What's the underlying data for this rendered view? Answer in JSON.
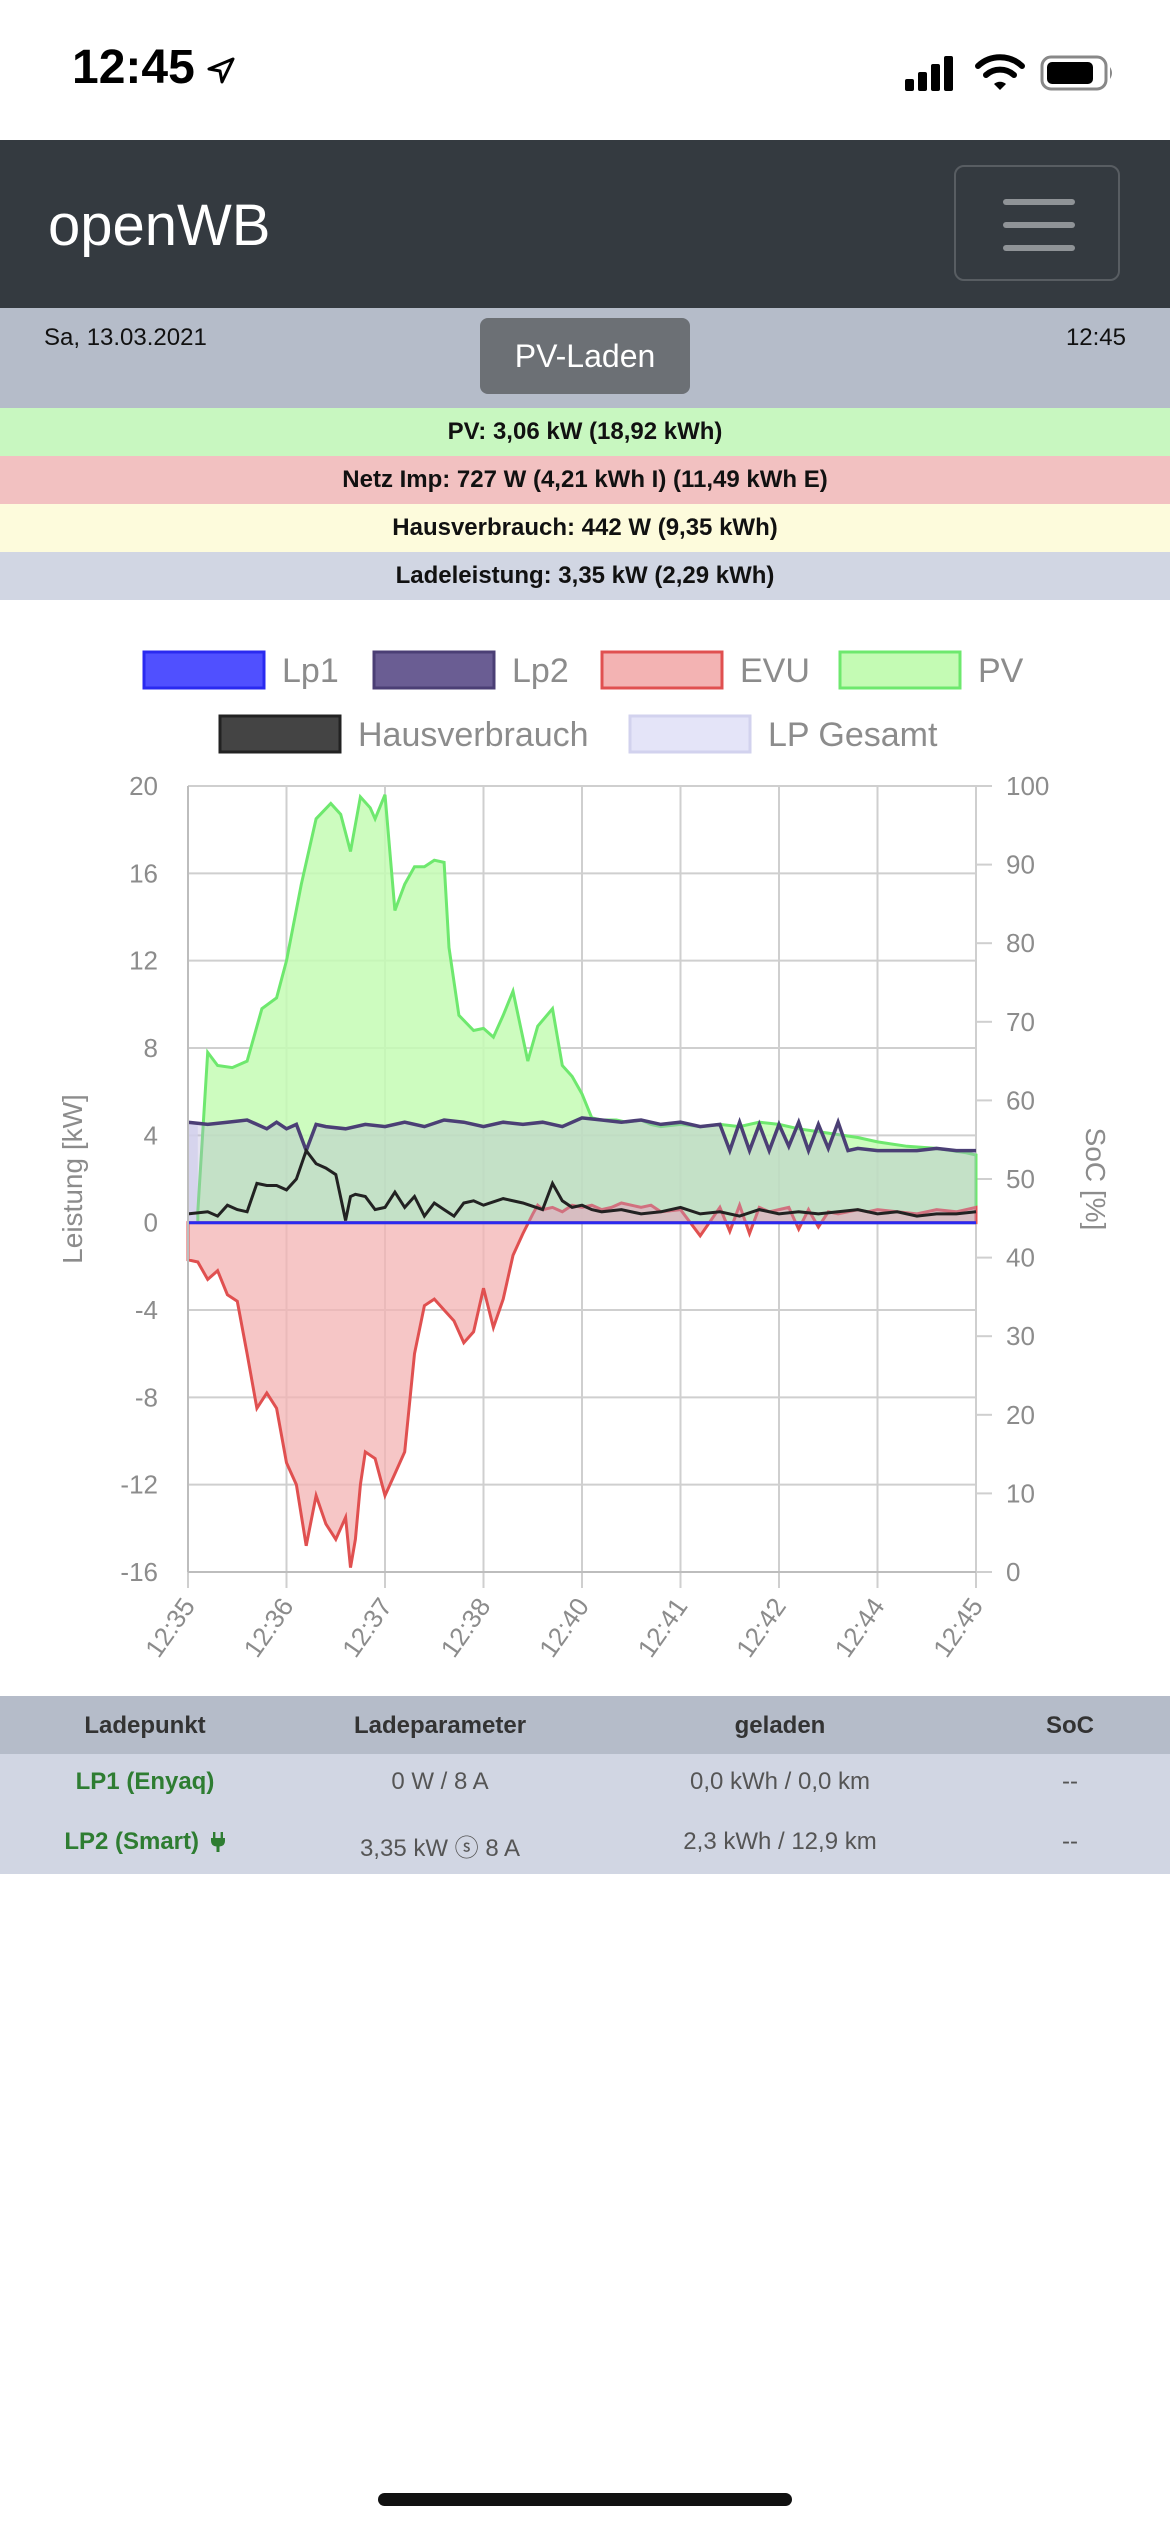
{
  "status_bar": {
    "time": "12:45"
  },
  "navbar": {
    "brand": "openWB"
  },
  "date_bar": {
    "date": "Sa, 13.03.2021",
    "time": "12:45",
    "mode_button": "PV-Laden"
  },
  "summary": {
    "pv": "PV: 3,06 kW (18,92 kWh)",
    "netz": "Netz Imp: 727 W (4,21 kWh I) (11,49 kWh E)",
    "hausverbrauch": "Hausverbrauch: 442 W (9,35 kWh)",
    "ladeleistung": "Ladeleistung: 3,35 kW (2,29 kWh)"
  },
  "chart_data": {
    "type": "area",
    "ylabel": "Leistung [kW]",
    "y2label": "SoC [%]",
    "ylim": [
      -16,
      20
    ],
    "y_ticks": [
      "20",
      "16",
      "12",
      "8",
      "4",
      "0",
      "-4",
      "-8",
      "-12",
      "-16"
    ],
    "y2lim": [
      0,
      100
    ],
    "y2_ticks": [
      "100",
      "90",
      "80",
      "70",
      "60",
      "50",
      "40",
      "30",
      "20",
      "10",
      "0"
    ],
    "x_ticks": [
      "12:35",
      "12:36",
      "12:37",
      "12:38",
      "12:40",
      "12:41",
      "12:42",
      "12:44",
      "12:45"
    ],
    "legend": [
      {
        "name": "Lp1",
        "fill": "#5050ff",
        "stroke": "#2a2af0"
      },
      {
        "name": "Lp2",
        "fill": "#6a5d93",
        "stroke": "#4b3f75"
      },
      {
        "name": "EVU",
        "fill": "#f3b3b3",
        "stroke": "#e05050"
      },
      {
        "name": "PV",
        "fill": "#c4fbb4",
        "stroke": "#6ee86e"
      },
      {
        "name": "Hausverbrauch",
        "fill": "#444444",
        "stroke": "#222222"
      },
      {
        "name": "LP Gesamt",
        "fill": "#e4e4f8",
        "stroke": "#d2d2ee"
      }
    ],
    "x_index_range": [
      0,
      8
    ],
    "series": [
      {
        "name": "PV",
        "x": [
          0.1,
          0.2,
          0.3,
          0.45,
          0.6,
          0.75,
          0.9,
          1.0,
          1.15,
          1.3,
          1.45,
          1.55,
          1.65,
          1.75,
          1.85,
          1.9,
          2.0,
          2.1,
          2.2,
          2.3,
          2.4,
          2.5,
          2.6,
          2.65,
          2.75,
          2.9,
          3.0,
          3.1,
          3.2,
          3.3,
          3.45,
          3.55,
          3.7,
          3.8,
          3.9,
          4.0,
          4.1,
          4.2,
          4.35,
          4.45,
          4.6,
          4.7,
          4.8,
          5.0,
          5.2,
          5.4,
          5.6,
          5.8,
          6.0,
          6.2,
          6.5,
          6.8,
          7.0,
          7.3,
          7.6,
          7.9,
          8.0
        ],
        "values": [
          0.5,
          7.8,
          7.2,
          7.1,
          7.4,
          9.8,
          10.3,
          12.0,
          15.5,
          18.5,
          19.2,
          18.7,
          17.0,
          19.5,
          19.0,
          18.5,
          19.6,
          14.3,
          15.5,
          16.3,
          16.3,
          16.6,
          16.5,
          12.6,
          9.5,
          8.8,
          8.9,
          8.5,
          9.5,
          10.6,
          7.4,
          9.0,
          9.8,
          7.2,
          6.7,
          5.9,
          4.8,
          4.7,
          4.7,
          4.6,
          4.7,
          4.5,
          4.4,
          4.5,
          4.4,
          4.5,
          4.4,
          4.6,
          4.5,
          4.3,
          4.1,
          3.9,
          3.7,
          3.5,
          3.4,
          3.2,
          3.1
        ]
      },
      {
        "name": "EVU",
        "x": [
          0.0,
          0.1,
          0.2,
          0.3,
          0.4,
          0.5,
          0.6,
          0.7,
          0.8,
          0.9,
          1.0,
          1.1,
          1.2,
          1.3,
          1.4,
          1.5,
          1.55,
          1.6,
          1.65,
          1.7,
          1.75,
          1.8,
          1.9,
          2.0,
          2.1,
          2.2,
          2.3,
          2.4,
          2.5,
          2.6,
          2.7,
          2.8,
          2.9,
          3.0,
          3.1,
          3.2,
          3.3,
          3.4,
          3.5,
          3.55,
          3.6,
          3.7,
          3.8,
          3.9,
          4.0,
          4.1,
          4.2,
          4.3,
          4.4,
          4.5,
          4.6,
          4.7,
          4.8,
          5.0,
          5.2,
          5.4,
          5.5,
          5.6,
          5.7,
          5.8,
          5.9,
          6.0,
          6.1,
          6.2,
          6.3,
          6.4,
          6.5,
          6.6,
          6.7,
          6.8,
          6.9,
          7.0,
          7.2,
          7.4,
          7.6,
          7.8,
          8.0
        ],
        "values": [
          -1.7,
          -1.8,
          -2.6,
          -2.2,
          -3.3,
          -3.6,
          -6.0,
          -8.5,
          -7.8,
          -8.5,
          -11.0,
          -12.0,
          -14.8,
          -12.5,
          -13.8,
          -14.5,
          -14.0,
          -13.5,
          -15.8,
          -14.5,
          -12.0,
          -10.5,
          -10.8,
          -12.5,
          -11.5,
          -10.5,
          -6.0,
          -3.8,
          -3.5,
          -4.0,
          -4.5,
          -5.5,
          -5.0,
          -3.0,
          -4.8,
          -3.5,
          -1.5,
          -0.5,
          0.4,
          0.8,
          0.6,
          0.7,
          0.5,
          0.8,
          0.7,
          0.8,
          0.6,
          0.7,
          0.9,
          0.8,
          0.7,
          0.8,
          0.5,
          0.6,
          -0.6,
          0.7,
          -0.4,
          0.8,
          -0.5,
          0.7,
          0.5,
          0.6,
          0.7,
          -0.3,
          0.6,
          -0.2,
          0.5,
          0.4,
          0.5,
          0.6,
          0.5,
          0.6,
          0.5,
          0.4,
          0.6,
          0.5,
          0.7
        ]
      },
      {
        "name": "Lp2",
        "x": [
          0.0,
          0.2,
          0.4,
          0.6,
          0.7,
          0.8,
          0.9,
          1.0,
          1.1,
          1.2,
          1.3,
          1.4,
          1.6,
          1.8,
          2.0,
          2.2,
          2.4,
          2.6,
          2.8,
          3.0,
          3.2,
          3.4,
          3.6,
          3.8,
          4.0,
          4.2,
          4.4,
          4.6,
          4.8,
          5.0,
          5.2,
          5.4,
          5.5,
          5.6,
          5.7,
          5.8,
          5.9,
          6.0,
          6.1,
          6.2,
          6.3,
          6.4,
          6.5,
          6.6,
          6.7,
          6.8,
          7.0,
          7.2,
          7.4,
          7.6,
          7.8,
          8.0
        ],
        "values": [
          4.6,
          4.5,
          4.6,
          4.7,
          4.5,
          4.3,
          4.6,
          4.3,
          4.5,
          3.3,
          4.5,
          4.4,
          4.3,
          4.5,
          4.4,
          4.6,
          4.4,
          4.7,
          4.6,
          4.4,
          4.6,
          4.5,
          4.6,
          4.4,
          4.8,
          4.7,
          4.6,
          4.7,
          4.5,
          4.6,
          4.4,
          4.5,
          3.3,
          4.6,
          3.3,
          4.5,
          3.3,
          4.5,
          3.5,
          4.6,
          3.3,
          4.5,
          3.4,
          4.6,
          3.3,
          3.4,
          3.3,
          3.3,
          3.3,
          3.4,
          3.3,
          3.3
        ]
      },
      {
        "name": "Hausverbrauch",
        "x": [
          0.0,
          0.2,
          0.3,
          0.4,
          0.5,
          0.6,
          0.7,
          0.8,
          0.9,
          1.0,
          1.1,
          1.2,
          1.3,
          1.4,
          1.5,
          1.6,
          1.65,
          1.7,
          1.8,
          1.9,
          2.0,
          2.1,
          2.2,
          2.3,
          2.4,
          2.5,
          2.6,
          2.7,
          2.8,
          2.9,
          3.0,
          3.2,
          3.4,
          3.6,
          3.7,
          3.8,
          3.9,
          4.0,
          4.1,
          4.2,
          4.4,
          4.6,
          4.8,
          5.0,
          5.2,
          5.4,
          5.6,
          5.8,
          6.0,
          6.2,
          6.4,
          6.6,
          6.8,
          7.0,
          7.2,
          7.4,
          7.6,
          7.8,
          8.0
        ],
        "values": [
          0.4,
          0.5,
          0.3,
          0.8,
          0.6,
          0.5,
          1.8,
          1.7,
          1.7,
          1.5,
          2.0,
          3.3,
          2.7,
          2.5,
          2.2,
          0.1,
          1.2,
          1.3,
          1.2,
          0.6,
          0.7,
          1.4,
          0.7,
          1.2,
          0.3,
          0.9,
          0.6,
          0.3,
          0.9,
          1.0,
          0.8,
          1.1,
          0.9,
          0.6,
          1.8,
          1.0,
          0.7,
          0.8,
          0.6,
          0.5,
          0.6,
          0.4,
          0.5,
          0.7,
          0.4,
          0.5,
          0.3,
          0.6,
          0.4,
          0.5,
          0.4,
          0.5,
          0.6,
          0.4,
          0.5,
          0.3,
          0.4,
          0.4,
          0.5
        ]
      },
      {
        "name": "Lp1",
        "x": [
          0.0,
          8.0
        ],
        "values": [
          0.0,
          0.0
        ]
      },
      {
        "name": "LP Gesamt",
        "x": [
          0.0,
          0.1
        ],
        "values": [
          4.6,
          4.5
        ]
      }
    ]
  },
  "table": {
    "headers": [
      "Ladepunkt",
      "Ladeparameter",
      "geladen",
      "SoC"
    ],
    "rows": [
      {
        "ladepunkt": "LP1 (Enyaq)",
        "parameter": "0 W / 8 A",
        "geladen": "0,0 kWh / 0,0 km",
        "soc": "--"
      },
      {
        "ladepunkt": "LP2 (Smart)",
        "parameter": "3,35 kW ⓢ 8 A",
        "geladen": "2,3 kWh / 12,9 km",
        "soc": "--"
      }
    ]
  }
}
